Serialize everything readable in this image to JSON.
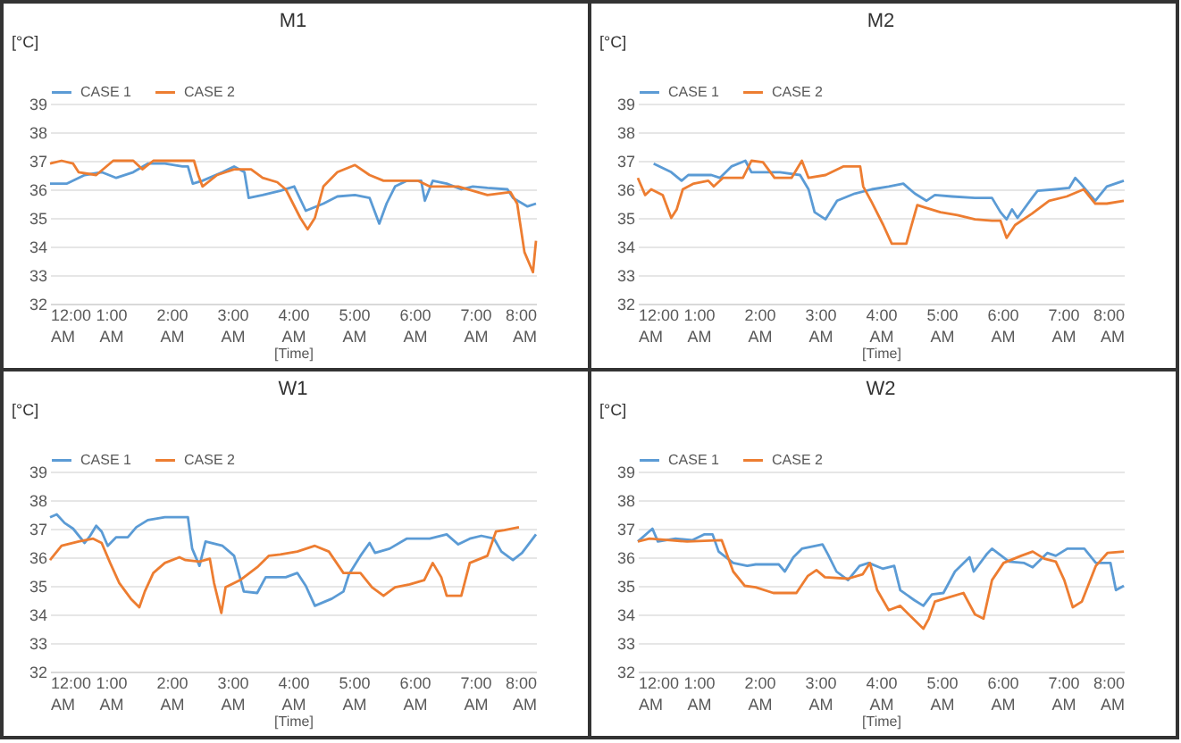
{
  "chart_data": [
    {
      "type": "line",
      "title": "M1",
      "xlabel": "[Time]",
      "ylabel": "[°C]",
      "xlim": [
        0,
        8
      ],
      "xticks": [
        {
          "value": 0,
          "label": "12:00 AM"
        },
        {
          "value": 1,
          "label": "1:00 AM"
        },
        {
          "value": 2,
          "label": "2:00 AM"
        },
        {
          "value": 3,
          "label": "3:00 AM"
        },
        {
          "value": 4,
          "label": "4:00 AM"
        },
        {
          "value": 5,
          "label": "5:00 AM"
        },
        {
          "value": 6,
          "label": "6:00 AM"
        },
        {
          "value": 7,
          "label": "7:00 AM"
        },
        {
          "value": 8,
          "label": "8:00 AM"
        }
      ],
      "ylim": [
        32,
        39
      ],
      "yticks": [
        32,
        33,
        34,
        35,
        36,
        37,
        38,
        39
      ],
      "grid": "y",
      "legend": "top",
      "series": [
        {
          "name": "CASE 1",
          "color": "#5b9bd5",
          "x": [
            0,
            0.28,
            0.57,
            0.85,
            1.09,
            1.37,
            1.61,
            1.89,
            2.18,
            2.27,
            2.35,
            2.51,
            2.84,
            3.03,
            3.2,
            3.27,
            3.5,
            3.79,
            4.02,
            4.21,
            4.5,
            4.73,
            5.02,
            5.26,
            5.42,
            5.54,
            5.68,
            5.87,
            6.11,
            6.17,
            6.3,
            6.53,
            6.77,
            6.96,
            7.2,
            7.53,
            7.62,
            7.86,
            8.0
          ],
          "values": [
            36.2,
            36.2,
            36.5,
            36.6,
            36.4,
            36.6,
            36.9,
            36.9,
            36.8,
            36.8,
            36.2,
            36.3,
            36.6,
            36.8,
            36.6,
            35.7,
            35.8,
            35.95,
            36.1,
            35.25,
            35.5,
            35.75,
            35.8,
            35.7,
            34.8,
            35.5,
            36.1,
            36.3,
            36.3,
            35.6,
            36.3,
            36.2,
            36.0,
            36.1,
            36.05,
            36.0,
            35.7,
            35.4,
            35.5
          ]
        },
        {
          "name": "CASE 2",
          "color": "#ed7d31",
          "x": [
            0,
            0.19,
            0.38,
            0.47,
            0.76,
            1.04,
            1.37,
            1.52,
            1.7,
            2.18,
            2.37,
            2.44,
            2.51,
            2.75,
            3.03,
            3.31,
            3.5,
            3.74,
            3.88,
            4.12,
            4.24,
            4.36,
            4.5,
            4.73,
            5.02,
            5.26,
            5.49,
            5.78,
            6.06,
            6.25,
            6.53,
            6.72,
            7.2,
            7.58,
            7.69,
            7.81,
            7.95,
            8.0
          ],
          "values": [
            36.9,
            37.0,
            36.9,
            36.6,
            36.5,
            37.0,
            37.0,
            36.7,
            37.0,
            37.0,
            37.0,
            36.5,
            36.1,
            36.5,
            36.7,
            36.7,
            36.4,
            36.25,
            36.0,
            35.0,
            34.6,
            35.0,
            36.1,
            36.6,
            36.85,
            36.5,
            36.3,
            36.3,
            36.3,
            36.1,
            36.1,
            36.1,
            35.8,
            35.9,
            35.5,
            33.8,
            33.1,
            34.2
          ]
        }
      ]
    },
    {
      "type": "line",
      "title": "M2",
      "xlabel": "[Time]",
      "ylabel": "[°C]",
      "xlim": [
        0,
        8
      ],
      "xticks": [
        {
          "value": 0,
          "label": "12:00 AM"
        },
        {
          "value": 1,
          "label": "1:00 AM"
        },
        {
          "value": 2,
          "label": "2:00 AM"
        },
        {
          "value": 3,
          "label": "3:00 AM"
        },
        {
          "value": 4,
          "label": "4:00 AM"
        },
        {
          "value": 5,
          "label": "5:00 AM"
        },
        {
          "value": 6,
          "label": "6:00 AM"
        },
        {
          "value": 7,
          "label": "7:00 AM"
        },
        {
          "value": 8,
          "label": "8:00 AM"
        }
      ],
      "ylim": [
        32,
        39
      ],
      "yticks": [
        32,
        33,
        34,
        35,
        36,
        37,
        38,
        39
      ],
      "grid": "y",
      "legend": "top",
      "series": [
        {
          "name": "CASE 1",
          "color": "#5b9bd5",
          "x": [
            0.26,
            0.55,
            0.72,
            0.83,
            1.21,
            1.35,
            1.54,
            1.77,
            1.87,
            2.34,
            2.67,
            2.81,
            2.91,
            3.09,
            3.28,
            3.57,
            3.85,
            4.13,
            4.37,
            4.56,
            4.75,
            4.89,
            5.17,
            5.55,
            5.83,
            5.97,
            6.07,
            6.16,
            6.25,
            6.49,
            6.58,
            6.87,
            7.1,
            7.2,
            7.29,
            7.53,
            7.72,
            8.0
          ],
          "values": [
            36.9,
            36.6,
            36.3,
            36.5,
            36.5,
            36.4,
            36.8,
            37.0,
            36.6,
            36.6,
            36.5,
            36.0,
            35.2,
            34.95,
            35.6,
            35.85,
            36.0,
            36.1,
            36.2,
            35.85,
            35.6,
            35.8,
            35.75,
            35.7,
            35.7,
            35.2,
            34.95,
            35.3,
            35.0,
            35.7,
            35.95,
            36.0,
            36.05,
            36.4,
            36.2,
            35.6,
            36.1,
            36.3
          ]
        },
        {
          "name": "CASE 2",
          "color": "#ed7d31",
          "x": [
            0,
            0.12,
            0.22,
            0.41,
            0.55,
            0.64,
            0.74,
            0.92,
            1.16,
            1.25,
            1.4,
            1.73,
            1.87,
            2.06,
            2.25,
            2.53,
            2.7,
            2.81,
            3.09,
            3.38,
            3.66,
            3.71,
            3.85,
            4.04,
            4.18,
            4.42,
            4.6,
            4.75,
            4.98,
            5.26,
            5.55,
            5.83,
            5.97,
            6.07,
            6.21,
            6.49,
            6.77,
            7.06,
            7.34,
            7.53,
            7.72,
            8.0
          ],
          "values": [
            36.4,
            35.8,
            36.0,
            35.8,
            35.0,
            35.3,
            36.0,
            36.2,
            36.3,
            36.1,
            36.4,
            36.4,
            37.0,
            36.95,
            36.4,
            36.4,
            37.0,
            36.4,
            36.5,
            36.8,
            36.8,
            36.1,
            35.55,
            34.75,
            34.1,
            34.1,
            35.45,
            35.35,
            35.2,
            35.1,
            34.95,
            34.9,
            34.9,
            34.3,
            34.75,
            35.15,
            35.6,
            35.75,
            36.0,
            35.5,
            35.5,
            35.6
          ]
        }
      ]
    },
    {
      "type": "line",
      "title": "W1",
      "xlabel": "[Time]",
      "ylabel": "[°C]",
      "xlim": [
        0,
        8
      ],
      "xticks": [
        {
          "value": 0,
          "label": "12:00 AM"
        },
        {
          "value": 1,
          "label": "1:00 AM"
        },
        {
          "value": 2,
          "label": "2:00 AM"
        },
        {
          "value": 3,
          "label": "3:00 AM"
        },
        {
          "value": 4,
          "label": "4:00 AM"
        },
        {
          "value": 5,
          "label": "5:00 AM"
        },
        {
          "value": 6,
          "label": "6:00 AM"
        },
        {
          "value": 7,
          "label": "7:00 AM"
        },
        {
          "value": 8,
          "label": "8:00 AM"
        }
      ],
      "ylim": [
        32,
        39
      ],
      "yticks": [
        32,
        33,
        34,
        35,
        36,
        37,
        38,
        39
      ],
      "grid": "y",
      "legend": "top",
      "series": [
        {
          "name": "CASE 1",
          "color": "#5b9bd5",
          "x": [
            0,
            0.11,
            0.24,
            0.38,
            0.57,
            0.66,
            0.76,
            0.85,
            0.95,
            1.09,
            1.28,
            1.42,
            1.61,
            1.89,
            2.27,
            2.34,
            2.46,
            2.56,
            2.84,
            3.03,
            3.19,
            3.41,
            3.55,
            3.88,
            4.07,
            4.21,
            4.36,
            4.64,
            4.83,
            4.92,
            5.11,
            5.26,
            5.35,
            5.59,
            5.87,
            6.25,
            6.53,
            6.72,
            6.91,
            7.1,
            7.31,
            7.43,
            7.62,
            7.77,
            8.0
          ],
          "values": [
            37.4,
            37.5,
            37.2,
            37.0,
            36.5,
            36.75,
            37.1,
            36.9,
            36.4,
            36.7,
            36.7,
            37.05,
            37.3,
            37.4,
            37.4,
            36.3,
            35.7,
            36.55,
            36.4,
            36.05,
            34.8,
            34.75,
            35.3,
            35.3,
            35.45,
            35.0,
            34.3,
            34.55,
            34.8,
            35.4,
            36.05,
            36.5,
            36.15,
            36.3,
            36.65,
            36.65,
            36.8,
            36.45,
            36.65,
            36.75,
            36.65,
            36.2,
            35.9,
            36.15,
            36.8
          ]
        },
        {
          "name": "CASE 2",
          "color": "#ed7d31",
          "x": [
            0,
            0.19,
            0.47,
            0.71,
            0.85,
            0.99,
            1.14,
            1.33,
            1.47,
            1.56,
            1.7,
            1.89,
            2.13,
            2.23,
            2.46,
            2.63,
            2.7,
            2.82,
            2.89,
            3.13,
            3.41,
            3.6,
            3.79,
            4.07,
            4.36,
            4.59,
            4.83,
            5.11,
            5.3,
            5.49,
            5.68,
            5.92,
            6.16,
            6.3,
            6.44,
            6.53,
            6.77,
            6.91,
            7.2,
            7.34,
            7.48,
            7.72
          ],
          "values": [
            35.9,
            36.4,
            36.55,
            36.65,
            36.5,
            35.8,
            35.1,
            34.55,
            34.25,
            34.8,
            35.45,
            35.8,
            36.0,
            35.9,
            35.85,
            35.95,
            35.1,
            34.05,
            34.95,
            35.2,
            35.65,
            36.05,
            36.1,
            36.2,
            36.4,
            36.2,
            35.45,
            35.45,
            34.95,
            34.65,
            34.95,
            35.05,
            35.2,
            35.8,
            35.3,
            34.65,
            34.65,
            35.8,
            36.05,
            36.9,
            36.95,
            37.05
          ]
        }
      ]
    },
    {
      "type": "line",
      "title": "W2",
      "xlabel": "[Time]",
      "ylabel": "[°C]",
      "xlim": [
        0,
        8
      ],
      "xticks": [
        {
          "value": 0,
          "label": "12:00 AM"
        },
        {
          "value": 1,
          "label": "1:00 AM"
        },
        {
          "value": 2,
          "label": "2:00 AM"
        },
        {
          "value": 3,
          "label": "3:00 AM"
        },
        {
          "value": 4,
          "label": "4:00 AM"
        },
        {
          "value": 5,
          "label": "5:00 AM"
        },
        {
          "value": 6,
          "label": "6:00 AM"
        },
        {
          "value": 7,
          "label": "7:00 AM"
        },
        {
          "value": 8,
          "label": "8:00 AM"
        }
      ],
      "ylim": [
        32,
        39
      ],
      "yticks": [
        32,
        33,
        34,
        35,
        36,
        37,
        38,
        39
      ],
      "grid": "y",
      "legend": "top",
      "series": [
        {
          "name": "CASE 1",
          "color": "#5b9bd5",
          "x": [
            0,
            0.24,
            0.33,
            0.62,
            0.9,
            1.09,
            1.23,
            1.33,
            1.57,
            1.8,
            1.94,
            2.32,
            2.42,
            2.56,
            2.7,
            3.04,
            3.13,
            3.27,
            3.46,
            3.65,
            3.8,
            4.03,
            4.22,
            4.32,
            4.55,
            4.7,
            4.84,
            5.03,
            5.22,
            5.46,
            5.53,
            5.74,
            5.83,
            6.11,
            6.36,
            6.5,
            6.74,
            6.88,
            7.07,
            7.35,
            7.54,
            7.78,
            7.87,
            8.0
          ],
          "values": [
            36.55,
            37.0,
            36.55,
            36.65,
            36.6,
            36.8,
            36.8,
            36.2,
            35.8,
            35.7,
            35.75,
            35.75,
            35.5,
            36.0,
            36.3,
            36.45,
            36.1,
            35.5,
            35.2,
            35.7,
            35.8,
            35.6,
            35.7,
            34.85,
            34.5,
            34.3,
            34.7,
            34.75,
            35.5,
            36.0,
            35.5,
            36.1,
            36.3,
            35.85,
            35.8,
            35.65,
            36.15,
            36.05,
            36.3,
            36.3,
            35.8,
            35.8,
            34.85,
            35.0
          ]
        },
        {
          "name": "CASE 2",
          "color": "#ed7d31",
          "x": [
            0,
            0.19,
            0.52,
            0.81,
            1.38,
            1.57,
            1.76,
            1.94,
            2.23,
            2.61,
            2.8,
            2.94,
            3.08,
            3.46,
            3.7,
            3.82,
            3.94,
            4.13,
            4.32,
            4.46,
            4.7,
            4.79,
            4.89,
            5.12,
            5.36,
            5.55,
            5.69,
            5.83,
            6.02,
            6.31,
            6.5,
            6.69,
            6.88,
            7.02,
            7.16,
            7.31,
            7.54,
            7.73,
            8.0
          ],
          "values": [
            36.55,
            36.65,
            36.6,
            36.55,
            36.6,
            35.5,
            35.0,
            34.95,
            34.75,
            34.75,
            35.35,
            35.55,
            35.3,
            35.25,
            35.4,
            35.8,
            34.85,
            34.15,
            34.3,
            34.0,
            33.5,
            33.85,
            34.45,
            34.6,
            34.75,
            34.0,
            33.85,
            35.2,
            35.8,
            36.05,
            36.2,
            35.95,
            35.85,
            35.2,
            34.25,
            34.45,
            35.7,
            36.15,
            36.2
          ]
        }
      ]
    }
  ]
}
